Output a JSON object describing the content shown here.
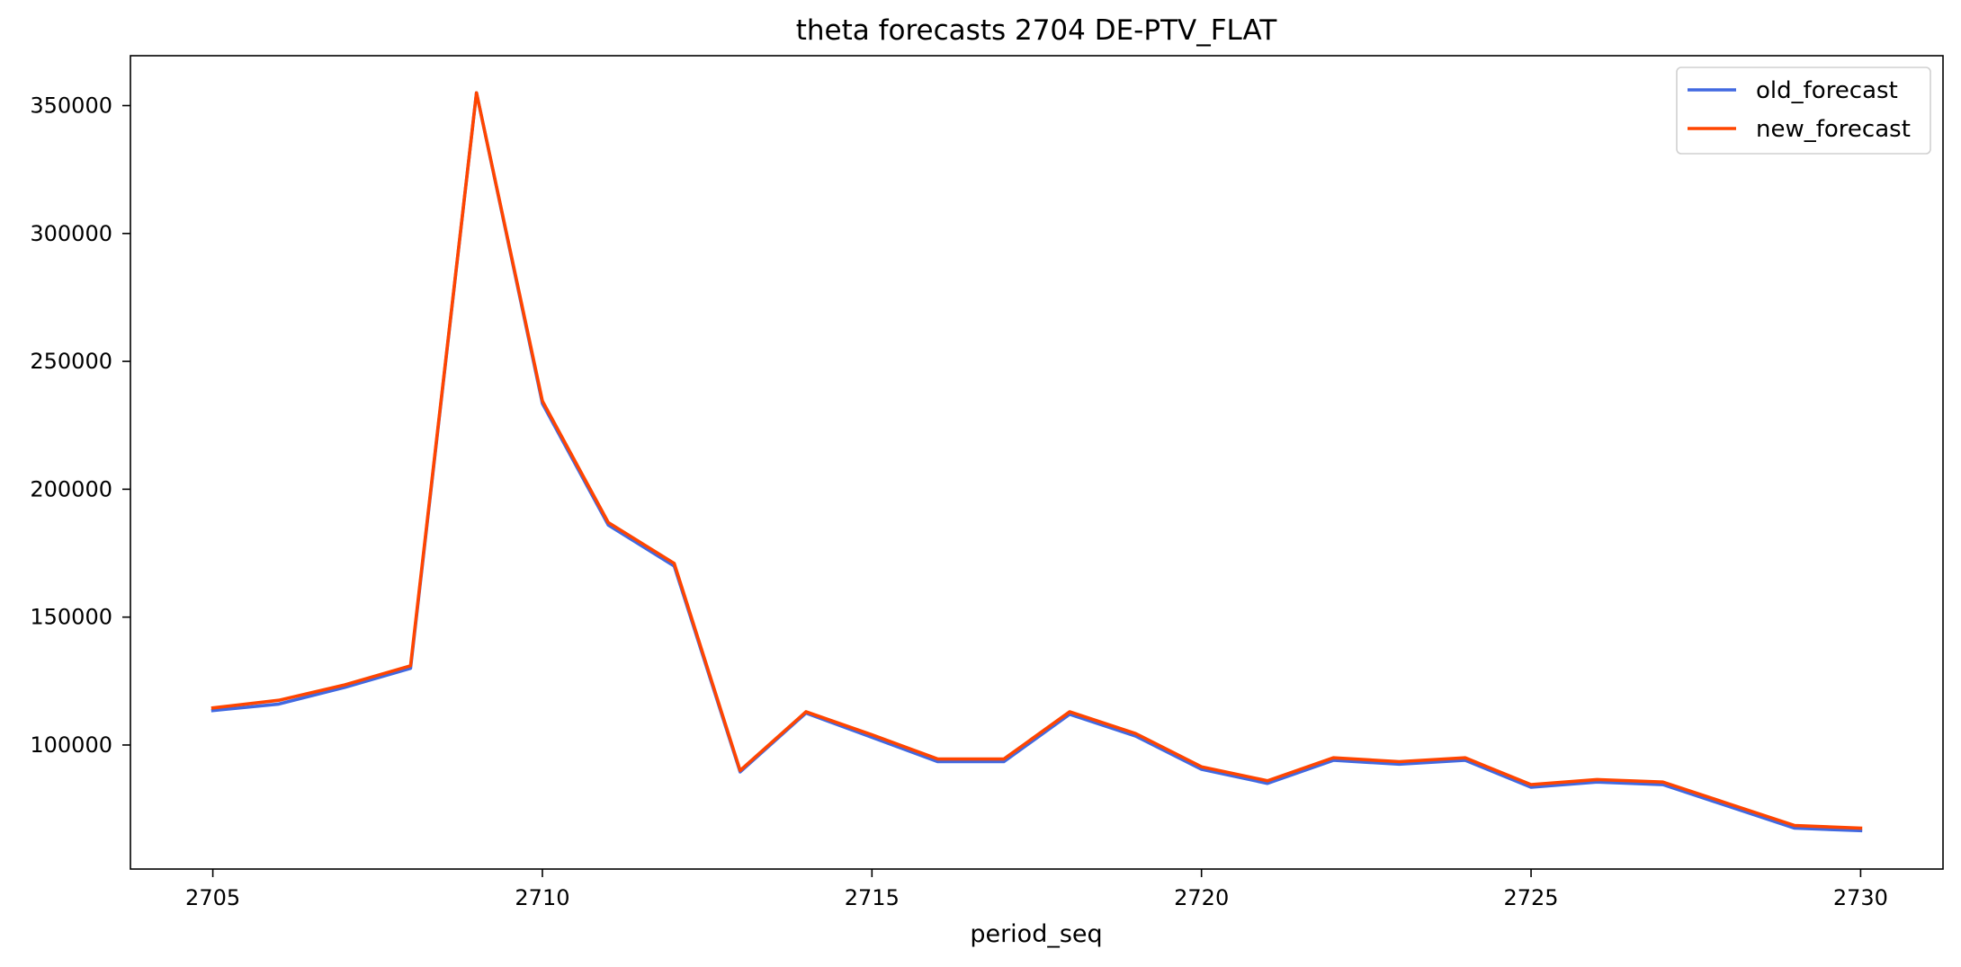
{
  "chart_data": {
    "type": "line",
    "title": "theta forecasts 2704 DE-PTV_FLAT",
    "xlabel": "period_seq",
    "ylabel": "",
    "x": [
      2705,
      2706,
      2707,
      2708,
      2709,
      2710,
      2711,
      2712,
      2713,
      2714,
      2715,
      2716,
      2717,
      2718,
      2719,
      2720,
      2721,
      2722,
      2723,
      2724,
      2725,
      2726,
      2727,
      2728,
      2729,
      2730
    ],
    "xlim": [
      2703.75,
      2731.25
    ],
    "ylim": [
      51500,
      369500
    ],
    "xticks": [
      2705,
      2710,
      2715,
      2720,
      2725,
      2730
    ],
    "yticks": [
      100000,
      150000,
      200000,
      250000,
      300000,
      350000
    ],
    "grid": false,
    "legend_position": "top-right",
    "series": [
      {
        "name": "old_forecast",
        "color": "#4169e1",
        "values": [
          113500,
          116000,
          122500,
          130000,
          355000,
          233500,
          186000,
          170000,
          89500,
          112500,
          103000,
          93500,
          93500,
          112000,
          103500,
          90500,
          85000,
          94000,
          92500,
          94000,
          83500,
          85500,
          84500,
          76000,
          67500,
          66500
        ]
      },
      {
        "name": "new_forecast",
        "color": "#ff4500",
        "values": [
          114500,
          117500,
          123500,
          131000,
          355000,
          234500,
          187000,
          171000,
          90000,
          113000,
          104000,
          94500,
          94500,
          113000,
          104500,
          91500,
          86000,
          95000,
          93500,
          95000,
          84500,
          86500,
          85500,
          77000,
          68500,
          67500
        ]
      }
    ]
  }
}
